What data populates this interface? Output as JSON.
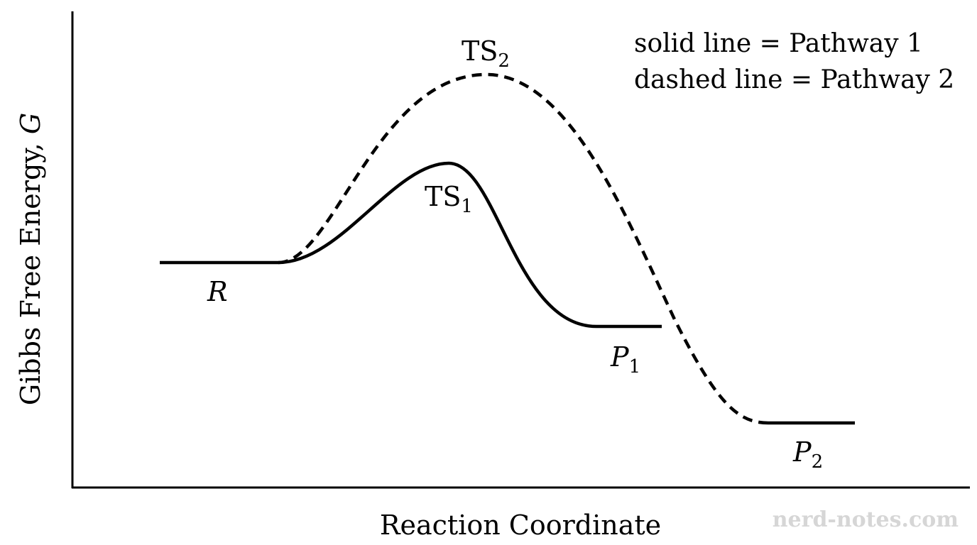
{
  "axes": {
    "ylabel": "Gibbs Free Energy, ",
    "ylabel_var": "G",
    "xlabel": "Reaction Coordinate"
  },
  "labels": {
    "reactant": "R",
    "ts1_main": "TS",
    "ts1_sub": "1",
    "ts2_main": "TS",
    "ts2_sub": "2",
    "p1_main": "P",
    "p1_sub": "1",
    "p2_main": "P",
    "p2_sub": "2"
  },
  "legend": {
    "line1": "solid line = Pathway 1",
    "line2": "dashed line = Pathway 2"
  },
  "pathways": [
    {
      "name": "Pathway 1",
      "style": "solid",
      "stroke": "#000000"
    },
    {
      "name": "Pathway 2",
      "style": "dashed",
      "stroke": "#000000"
    }
  ],
  "watermark": "nerd-notes.com"
}
